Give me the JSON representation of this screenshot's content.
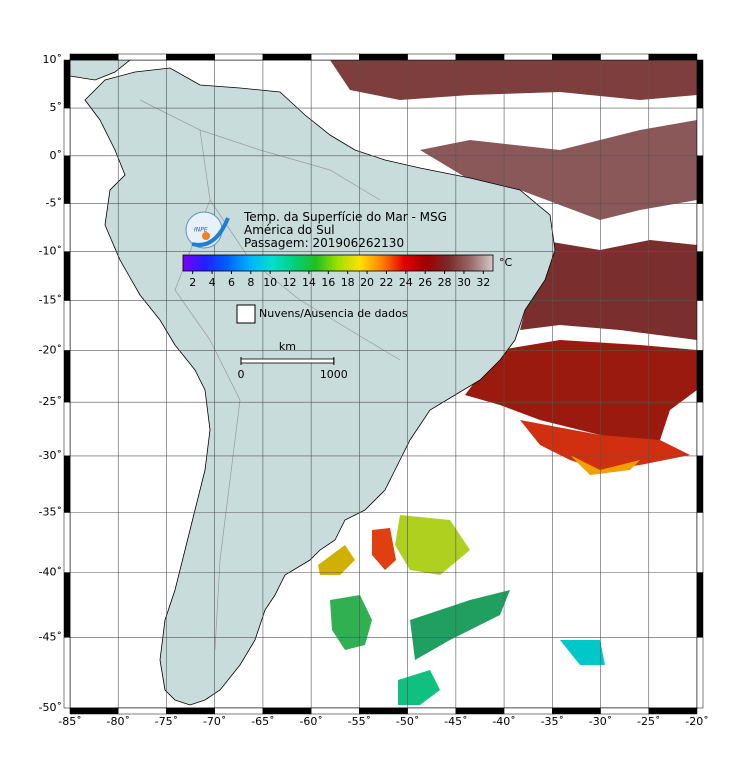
{
  "map": {
    "title": "Temp. da Superfície do Mar - MSG",
    "subtitle": "América do Sul",
    "pass": "Passagem: 201906262130",
    "logo": "INPE",
    "projection": "mercator",
    "xlim": [
      -85,
      -20
    ],
    "ylim": [
      -50,
      10
    ],
    "grid": true,
    "xticks": [
      {
        "value": -85,
        "label": "-85˚"
      },
      {
        "value": -80,
        "label": "-80˚"
      },
      {
        "value": -75,
        "label": "-75˚"
      },
      {
        "value": -70,
        "label": "-70˚"
      },
      {
        "value": -65,
        "label": "-65˚"
      },
      {
        "value": -60,
        "label": "-60˚"
      },
      {
        "value": -55,
        "label": "-55˚"
      },
      {
        "value": -50,
        "label": "-50˚"
      },
      {
        "value": -45,
        "label": "-45˚"
      },
      {
        "value": -40,
        "label": "-40˚"
      },
      {
        "value": -35,
        "label": "-35˚"
      },
      {
        "value": -30,
        "label": "-30˚"
      },
      {
        "value": -25,
        "label": "-25˚"
      },
      {
        "value": -20,
        "label": "-20˚"
      }
    ],
    "yticks": [
      {
        "value": 10,
        "label": "10˚"
      },
      {
        "value": 5,
        "label": "5˚"
      },
      {
        "value": 0,
        "label": "0˚"
      },
      {
        "value": -5,
        "label": "-5˚"
      },
      {
        "value": -10,
        "label": "-10˚"
      },
      {
        "value": -15,
        "label": "-15˚"
      },
      {
        "value": -20,
        "label": "-20˚"
      },
      {
        "value": -25,
        "label": "-25˚"
      },
      {
        "value": -30,
        "label": "-30˚"
      },
      {
        "value": -35,
        "label": "-35˚"
      },
      {
        "value": -40,
        "label": "-40˚"
      },
      {
        "value": -45,
        "label": "-45˚"
      },
      {
        "value": -50,
        "label": "-50˚"
      }
    ],
    "colorbar": {
      "unit": "°C",
      "lim": [
        1,
        33
      ],
      "ticks": [
        2,
        4,
        6,
        8,
        10,
        12,
        14,
        16,
        18,
        20,
        22,
        24,
        26,
        28,
        30,
        32
      ],
      "colors": [
        "#7a00ff",
        "#2020ff",
        "#0060ff",
        "#00b0ff",
        "#00e0d0",
        "#00d080",
        "#20c020",
        "#a0e000",
        "#ffe000",
        "#ff8000",
        "#e00000",
        "#a00000",
        "#7a2a2a",
        "#9a6a6a",
        "#d8c8c8"
      ]
    },
    "legend": "Nuvens/Ausencia de dados",
    "scalebar": {
      "label": "km",
      "ticks": [
        0,
        1000
      ]
    }
  }
}
